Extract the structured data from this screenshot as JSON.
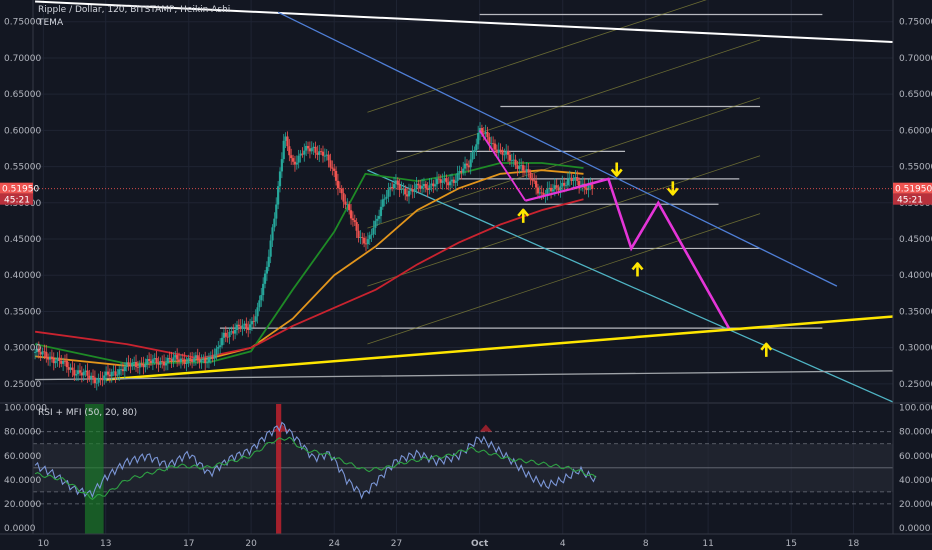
{
  "chart_data": [
    {
      "type": "candlestick",
      "title": "Ripple / Dollar, 120, BITSTAMP, Heikin Ashi",
      "indicator": "TEMA",
      "price_axis": {
        "labels": [
          "0.75000",
          "0.70000",
          "0.65000",
          "0.60000",
          "0.55000",
          "0.50000",
          "0.45000",
          "0.40000",
          "0.35000",
          "0.30000",
          "0.25000"
        ],
        "values": [
          0.75,
          0.7,
          0.65,
          0.6,
          0.55,
          0.5,
          0.45,
          0.4,
          0.35,
          0.3,
          0.25
        ],
        "ylim": [
          0.225,
          0.78
        ]
      },
      "time_axis": {
        "labels": [
          "10",
          "13",
          "17",
          "20",
          "24",
          "27",
          "Oct",
          "4",
          "8",
          "11",
          "15",
          "18"
        ],
        "values": [
          10,
          13,
          17,
          20,
          24,
          27,
          31,
          35,
          39,
          42,
          46,
          49
        ],
        "xlim": [
          9.5,
          50.9
        ]
      },
      "current_price": "0.51950",
      "countdown": "45:21",
      "current_price_value": 0.5195,
      "price_path": [
        [
          9.6,
          0.294
        ],
        [
          10.5,
          0.285
        ],
        [
          11.5,
          0.268
        ],
        [
          12,
          0.262
        ],
        [
          12.6,
          0.256
        ],
        [
          13.2,
          0.262
        ],
        [
          13.8,
          0.272
        ],
        [
          14.6,
          0.278
        ],
        [
          15.6,
          0.281
        ],
        [
          16.6,
          0.284
        ],
        [
          17.6,
          0.282
        ],
        [
          18.3,
          0.29
        ],
        [
          18.7,
          0.318
        ],
        [
          19.2,
          0.325
        ],
        [
          19.9,
          0.33
        ],
        [
          20.3,
          0.35
        ],
        [
          20.7,
          0.4
        ],
        [
          21.0,
          0.46
        ],
        [
          21.3,
          0.52
        ],
        [
          21.6,
          0.59
        ],
        [
          22.0,
          0.555
        ],
        [
          22.5,
          0.57
        ],
        [
          23.0,
          0.575
        ],
        [
          23.5,
          0.568
        ],
        [
          24.0,
          0.54
        ],
        [
          24.4,
          0.51
        ],
        [
          24.8,
          0.48
        ],
        [
          25.2,
          0.455
        ],
        [
          25.6,
          0.445
        ],
        [
          26.0,
          0.47
        ],
        [
          26.4,
          0.51
        ],
        [
          26.9,
          0.525
        ],
        [
          27.5,
          0.515
        ],
        [
          28.2,
          0.522
        ],
        [
          29.0,
          0.528
        ],
        [
          29.8,
          0.532
        ],
        [
          30.5,
          0.555
        ],
        [
          31.0,
          0.6
        ],
        [
          31.5,
          0.585
        ],
        [
          32.0,
          0.57
        ],
        [
          32.5,
          0.56
        ],
        [
          33.0,
          0.55
        ],
        [
          33.5,
          0.532
        ],
        [
          34.0,
          0.512
        ],
        [
          34.5,
          0.517
        ],
        [
          35.0,
          0.527
        ],
        [
          35.5,
          0.531
        ],
        [
          36.0,
          0.525
        ],
        [
          36.5,
          0.519
        ]
      ],
      "emas": [
        {
          "color": "#e2951c",
          "points": [
            [
              9.6,
              0.288
            ],
            [
              14,
              0.275
            ],
            [
              18,
              0.285
            ],
            [
              20,
              0.3
            ],
            [
              22,
              0.34
            ],
            [
              24,
              0.4
            ],
            [
              26,
              0.44
            ],
            [
              28,
              0.49
            ],
            [
              30,
              0.52
            ],
            [
              32,
              0.54
            ],
            [
              34,
              0.545
            ],
            [
              36,
              0.54
            ]
          ]
        },
        {
          "color": "#1e8a26",
          "points": [
            [
              9.6,
              0.305
            ],
            [
              14,
              0.278
            ],
            [
              18,
              0.28
            ],
            [
              20,
              0.295
            ],
            [
              22,
              0.38
            ],
            [
              24,
              0.46
            ],
            [
              25.5,
              0.54
            ],
            [
              28,
              0.53
            ],
            [
              30,
              0.54
            ],
            [
              32,
              0.555
            ],
            [
              34,
              0.555
            ],
            [
              36,
              0.548
            ]
          ]
        },
        {
          "color": "#c9232f",
          "points": [
            [
              9.6,
              0.322
            ],
            [
              14,
              0.305
            ],
            [
              17.5,
              0.285
            ],
            [
              20,
              0.3
            ],
            [
              22,
              0.33
            ],
            [
              24,
              0.355
            ],
            [
              26,
              0.38
            ],
            [
              28,
              0.415
            ],
            [
              30,
              0.445
            ],
            [
              32,
              0.47
            ],
            [
              34,
              0.49
            ],
            [
              36,
              0.505
            ]
          ]
        }
      ],
      "trendlines": [
        {
          "color": "#ffffff",
          "points": [
            [
              9.6,
              0.778
            ],
            [
              50.9,
              0.722
            ]
          ]
        },
        {
          "color": "#4f7fd7",
          "points": [
            [
              21.3,
              0.763
            ],
            [
              48.2,
              0.385
            ]
          ]
        },
        {
          "color": "#4fb4c4",
          "points": [
            [
              25.6,
              0.545
            ],
            [
              50.9,
              0.225
            ]
          ]
        },
        {
          "color": "#ffe600",
          "points": [
            [
              13.0,
              0.256
            ],
            [
              50.9,
              0.343
            ]
          ]
        },
        {
          "color": "#9fa3a8",
          "points": [
            [
              9.6,
              0.256
            ],
            [
              50.9,
              0.268
            ]
          ]
        }
      ],
      "levels": [
        {
          "value": 0.76,
          "x0": 31,
          "x1": 47.5
        },
        {
          "value": 0.633,
          "x0": 32,
          "x1": 44.5
        },
        {
          "value": 0.571,
          "x0": 27,
          "x1": 38
        },
        {
          "value": 0.533,
          "x0": 30,
          "x1": 43.5
        },
        {
          "value": 0.498,
          "x0": 30,
          "x1": 42.5
        },
        {
          "value": 0.437,
          "x0": 26,
          "x1": 44.5
        },
        {
          "value": 0.327,
          "x0": 18.5,
          "x1": 47.5
        }
      ],
      "projection": {
        "color": "#e535d8",
        "points": [
          [
            35.4,
            0.519
          ],
          [
            37.2,
            0.533
          ],
          [
            38.3,
            0.437
          ],
          [
            39.6,
            0.5
          ],
          [
            43.0,
            0.327
          ]
        ]
      },
      "arrows": [
        {
          "dir": "down",
          "x": 37.6,
          "y": 0.546
        },
        {
          "dir": "down",
          "x": 40.3,
          "y": 0.52
        },
        {
          "dir": "up",
          "x": 33.1,
          "y": 0.482
        },
        {
          "dir": "up",
          "x": 38.6,
          "y": 0.408
        },
        {
          "dir": "up",
          "x": 44.8,
          "y": 0.297
        }
      ]
    },
    {
      "type": "line",
      "title": "RSI + MFI (50, 20, 80)",
      "y_axis": {
        "labels": [
          "100.0000",
          "80.0000",
          "60.0000",
          "40.0000",
          "20.0000",
          "0.0000"
        ],
        "values": [
          100,
          80,
          60,
          40,
          20,
          0
        ],
        "ylim": [
          -5,
          103
        ]
      },
      "series": [
        {
          "color": "#7b96d6",
          "points": [
            [
              9.6,
              52
            ],
            [
              10.5,
              45
            ],
            [
              11.5,
              32
            ],
            [
              12.3,
              28
            ],
            [
              13,
              42
            ],
            [
              14,
              55
            ],
            [
              15,
              60
            ],
            [
              16,
              52
            ],
            [
              17,
              62
            ],
            [
              18,
              45
            ],
            [
              19,
              58
            ],
            [
              20,
              65
            ],
            [
              20.8,
              78
            ],
            [
              21.5,
              86
            ],
            [
              22.3,
              72
            ],
            [
              23,
              58
            ],
            [
              23.8,
              62
            ],
            [
              24.6,
              40
            ],
            [
              25.4,
              27
            ],
            [
              26,
              38
            ],
            [
              27,
              56
            ],
            [
              28,
              62
            ],
            [
              29,
              55
            ],
            [
              30,
              60
            ],
            [
              31,
              75
            ],
            [
              31.8,
              66
            ],
            [
              32.6,
              55
            ],
            [
              33.4,
              43
            ],
            [
              34.2,
              35
            ],
            [
              35,
              40
            ],
            [
              35.8,
              48
            ],
            [
              36.6,
              40
            ]
          ]
        },
        {
          "color": "#2ea043",
          "points": [
            [
              9.6,
              45
            ],
            [
              11,
              40
            ],
            [
              12.3,
              25
            ],
            [
              13,
              28
            ],
            [
              14,
              40
            ],
            [
              15,
              45
            ],
            [
              16.5,
              52
            ],
            [
              17.8,
              50
            ],
            [
              19,
              55
            ],
            [
              20,
              60
            ],
            [
              21,
              72
            ],
            [
              21.8,
              75
            ],
            [
              22.5,
              65
            ],
            [
              23.5,
              62
            ],
            [
              24.5,
              55
            ],
            [
              25.5,
              48
            ],
            [
              26.5,
              50
            ],
            [
              27.5,
              55
            ],
            [
              28.5,
              58
            ],
            [
              29.5,
              60
            ],
            [
              30.5,
              66
            ],
            [
              31.5,
              62
            ],
            [
              32.5,
              57
            ],
            [
              33.5,
              55
            ],
            [
              34.5,
              52
            ],
            [
              35.5,
              49
            ],
            [
              36.6,
              42
            ]
          ]
        }
      ],
      "reference_lines": [
        80,
        70,
        50,
        30,
        20
      ]
    }
  ]
}
